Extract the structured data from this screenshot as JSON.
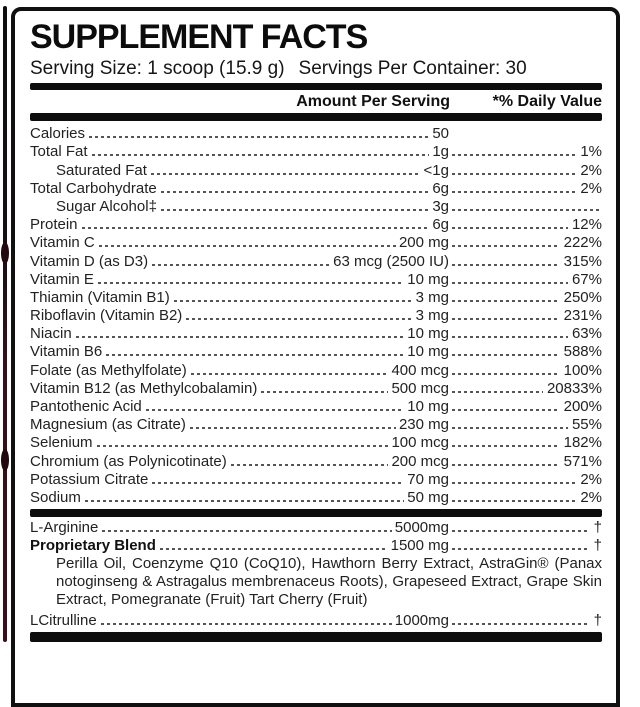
{
  "label": {
    "title": "SUPPLEMENT FACTS",
    "serving_size": "Serving Size: 1 scoop (15.9 g)",
    "servings_per_container": "Servings Per Container: 30",
    "header": {
      "amount_col": "Amount Per Serving",
      "dv_col": "*% Daily Value"
    },
    "nutrients": [
      {
        "name": "Calories",
        "amount": "50",
        "dv": "",
        "indent": false,
        "trail": false
      },
      {
        "name": "Total Fat",
        "amount": "1g",
        "dv": "1%",
        "indent": false,
        "trail": true
      },
      {
        "name": "Saturated Fat",
        "amount": "<1g",
        "dv": "2%",
        "indent": true,
        "trail": true
      },
      {
        "name": "Total Carbohydrate",
        "amount": "6g",
        "dv": "2%",
        "indent": false,
        "trail": true
      },
      {
        "name": "Sugar Alcohol‡",
        "amount": "3g",
        "dv": "",
        "indent": true,
        "trail": true
      },
      {
        "name": "Protein",
        "amount": "6g",
        "dv": "12%",
        "indent": false,
        "trail": true
      },
      {
        "name": "Vitamin C",
        "amount": "200 mg",
        "dv": "222%",
        "indent": false,
        "trail": true
      },
      {
        "name": "Vitamin D (as D3)",
        "amount": "63 mcg (2500 IU)",
        "dv": "315%",
        "indent": false,
        "trail": true
      },
      {
        "name": "Vitamin E",
        "amount": "10 mg",
        "dv": "67%",
        "indent": false,
        "trail": true
      },
      {
        "name": "Thiamin (Vitamin B1)",
        "amount": "3 mg",
        "dv": "250%",
        "indent": false,
        "trail": true
      },
      {
        "name": "Riboflavin (Vitamin B2)",
        "amount": "3 mg",
        "dv": "231%",
        "indent": false,
        "trail": true
      },
      {
        "name": "Niacin",
        "amount": "10 mg",
        "dv": "63%",
        "indent": false,
        "trail": true
      },
      {
        "name": "Vitamin B6",
        "amount": "10 mg",
        "dv": "588%",
        "indent": false,
        "trail": true
      },
      {
        "name": "Folate (as Methylfolate)",
        "amount": "400 mcg",
        "dv": "100%",
        "indent": false,
        "trail": true
      },
      {
        "name": "Vitamin B12 (as Methylcobalamin)",
        "amount": "500 mcg",
        "dv": "20833%",
        "indent": false,
        "trail": true
      },
      {
        "name": "Pantothenic Acid",
        "amount": "10 mg",
        "dv": "200%",
        "indent": false,
        "trail": true
      },
      {
        "name": "Magnesium (as Citrate)",
        "amount": "230 mg",
        "dv": "55%",
        "indent": false,
        "trail": true
      },
      {
        "name": "Selenium",
        "amount": "100 mcg",
        "dv": "182%",
        "indent": false,
        "trail": true
      },
      {
        "name": "Chromium (as Polynicotinate)",
        "amount": "200 mcg",
        "dv": "571%",
        "indent": false,
        "trail": true
      },
      {
        "name": "Potassium Citrate",
        "amount": "70 mg",
        "dv": "2%",
        "indent": false,
        "trail": true
      },
      {
        "name": "Sodium",
        "amount": "50 mg",
        "dv": "2%",
        "indent": false,
        "trail": true
      }
    ],
    "extras": [
      {
        "name": "L-Arginine",
        "amount": "5000mg",
        "dv": "†",
        "bold": false,
        "description": ""
      },
      {
        "name": "Proprietary Blend",
        "amount": "1500 mg",
        "dv": "†",
        "bold": true,
        "description": "Perilla Oil, Coenzyme Q10 (CoQ10), Hawthorn Berry Extract, AstraGin® (Panax notoginseng & Astragalus membrenaceus Roots), Grapeseed Extract, Grape Skin Extract, Pomegranate (Fruit) Tart Cherry (Fruit)"
      },
      {
        "name": "LCitrulline",
        "amount": "1000mg",
        "dv": "†",
        "bold": false,
        "description": ""
      }
    ]
  }
}
